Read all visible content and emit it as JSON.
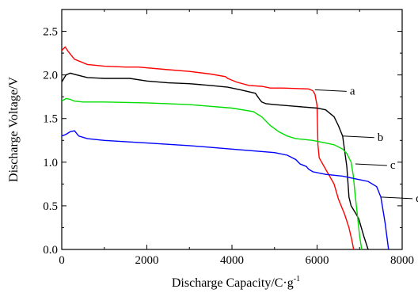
{
  "chart_data": {
    "type": "line",
    "title": "",
    "xlabel": "Discharge Capacity/C·g",
    "xlabel_sup": "-1",
    "ylabel": "Discharge Voltage/V",
    "xlim": [
      0,
      8000
    ],
    "ylim": [
      0,
      2.75
    ],
    "xticks": [
      0,
      2000,
      4000,
      6000,
      8000
    ],
    "yticks": [
      0.0,
      0.5,
      1.0,
      1.5,
      2.0,
      2.5
    ],
    "ytick_labels": [
      "0.0",
      "0.5",
      "1.0",
      "1.5",
      "2.0",
      "2.5"
    ],
    "grid": false,
    "series": [
      {
        "label": "a",
        "color": "#ff0000",
        "label_point": [
          5950,
          1.83
        ],
        "points": [
          [
            0,
            2.28
          ],
          [
            80,
            2.32
          ],
          [
            150,
            2.27
          ],
          [
            300,
            2.18
          ],
          [
            600,
            2.12
          ],
          [
            1000,
            2.1
          ],
          [
            1500,
            2.09
          ],
          [
            1800,
            2.09
          ],
          [
            2500,
            2.06
          ],
          [
            3000,
            2.04
          ],
          [
            3500,
            2.01
          ],
          [
            3850,
            1.98
          ],
          [
            3900,
            1.96
          ],
          [
            3950,
            1.95
          ],
          [
            4100,
            1.92
          ],
          [
            4400,
            1.88
          ],
          [
            4700,
            1.87
          ],
          [
            4900,
            1.85
          ],
          [
            5200,
            1.85
          ],
          [
            5800,
            1.84
          ],
          [
            5900,
            1.82
          ],
          [
            5950,
            1.78
          ],
          [
            6000,
            1.65
          ],
          [
            6020,
            1.2
          ],
          [
            6050,
            1.05
          ],
          [
            6200,
            0.92
          ],
          [
            6400,
            0.75
          ],
          [
            6500,
            0.58
          ],
          [
            6650,
            0.4
          ],
          [
            6750,
            0.25
          ],
          [
            6820,
            0.1
          ],
          [
            6860,
            0.0
          ]
        ]
      },
      {
        "label": "b",
        "color": "#000000",
        "label_point": [
          6600,
          1.3
        ],
        "points": [
          [
            0,
            1.92
          ],
          [
            100,
            2.0
          ],
          [
            200,
            2.02
          ],
          [
            350,
            2.0
          ],
          [
            600,
            1.97
          ],
          [
            1000,
            1.96
          ],
          [
            1600,
            1.96
          ],
          [
            2000,
            1.93
          ],
          [
            2500,
            1.91
          ],
          [
            3000,
            1.9
          ],
          [
            3500,
            1.88
          ],
          [
            3900,
            1.86
          ],
          [
            4200,
            1.83
          ],
          [
            4550,
            1.79
          ],
          [
            4650,
            1.72
          ],
          [
            4700,
            1.69
          ],
          [
            4800,
            1.67
          ],
          [
            5000,
            1.66
          ],
          [
            5500,
            1.64
          ],
          [
            6000,
            1.62
          ],
          [
            6200,
            1.6
          ],
          [
            6400,
            1.52
          ],
          [
            6500,
            1.42
          ],
          [
            6600,
            1.3
          ],
          [
            6700,
            0.95
          ],
          [
            6750,
            0.6
          ],
          [
            6800,
            0.5
          ],
          [
            6900,
            0.42
          ],
          [
            6980,
            0.35
          ],
          [
            7100,
            0.15
          ],
          [
            7200,
            0.0
          ]
        ]
      },
      {
        "label": "c",
        "color": "#00dd00",
        "label_point": [
          6900,
          0.98
        ],
        "points": [
          [
            0,
            1.7
          ],
          [
            100,
            1.73
          ],
          [
            200,
            1.72
          ],
          [
            300,
            1.7
          ],
          [
            500,
            1.69
          ],
          [
            1000,
            1.69
          ],
          [
            2000,
            1.68
          ],
          [
            3000,
            1.66
          ],
          [
            4000,
            1.62
          ],
          [
            4500,
            1.58
          ],
          [
            4700,
            1.52
          ],
          [
            4900,
            1.42
          ],
          [
            5100,
            1.35
          ],
          [
            5300,
            1.3
          ],
          [
            5500,
            1.27
          ],
          [
            5900,
            1.25
          ],
          [
            6200,
            1.22
          ],
          [
            6400,
            1.2
          ],
          [
            6600,
            1.15
          ],
          [
            6700,
            1.1
          ],
          [
            6800,
            1.0
          ],
          [
            6850,
            0.85
          ],
          [
            6900,
            0.6
          ],
          [
            6950,
            0.38
          ],
          [
            7000,
            0.15
          ],
          [
            7050,
            0.0
          ]
        ]
      },
      {
        "label": "d",
        "color": "#0000ff",
        "label_point": [
          7500,
          0.6
        ],
        "points": [
          [
            0,
            1.3
          ],
          [
            100,
            1.32
          ],
          [
            200,
            1.35
          ],
          [
            300,
            1.36
          ],
          [
            400,
            1.3
          ],
          [
            600,
            1.27
          ],
          [
            1000,
            1.25
          ],
          [
            2000,
            1.22
          ],
          [
            3000,
            1.19
          ],
          [
            4000,
            1.15
          ],
          [
            5000,
            1.11
          ],
          [
            5300,
            1.08
          ],
          [
            5500,
            1.03
          ],
          [
            5600,
            0.98
          ],
          [
            5750,
            0.95
          ],
          [
            5800,
            0.92
          ],
          [
            5900,
            0.89
          ],
          [
            6200,
            0.86
          ],
          [
            6600,
            0.84
          ],
          [
            7000,
            0.8
          ],
          [
            7200,
            0.78
          ],
          [
            7400,
            0.72
          ],
          [
            7500,
            0.6
          ],
          [
            7600,
            0.3
          ],
          [
            7680,
            0.0
          ]
        ]
      }
    ]
  }
}
